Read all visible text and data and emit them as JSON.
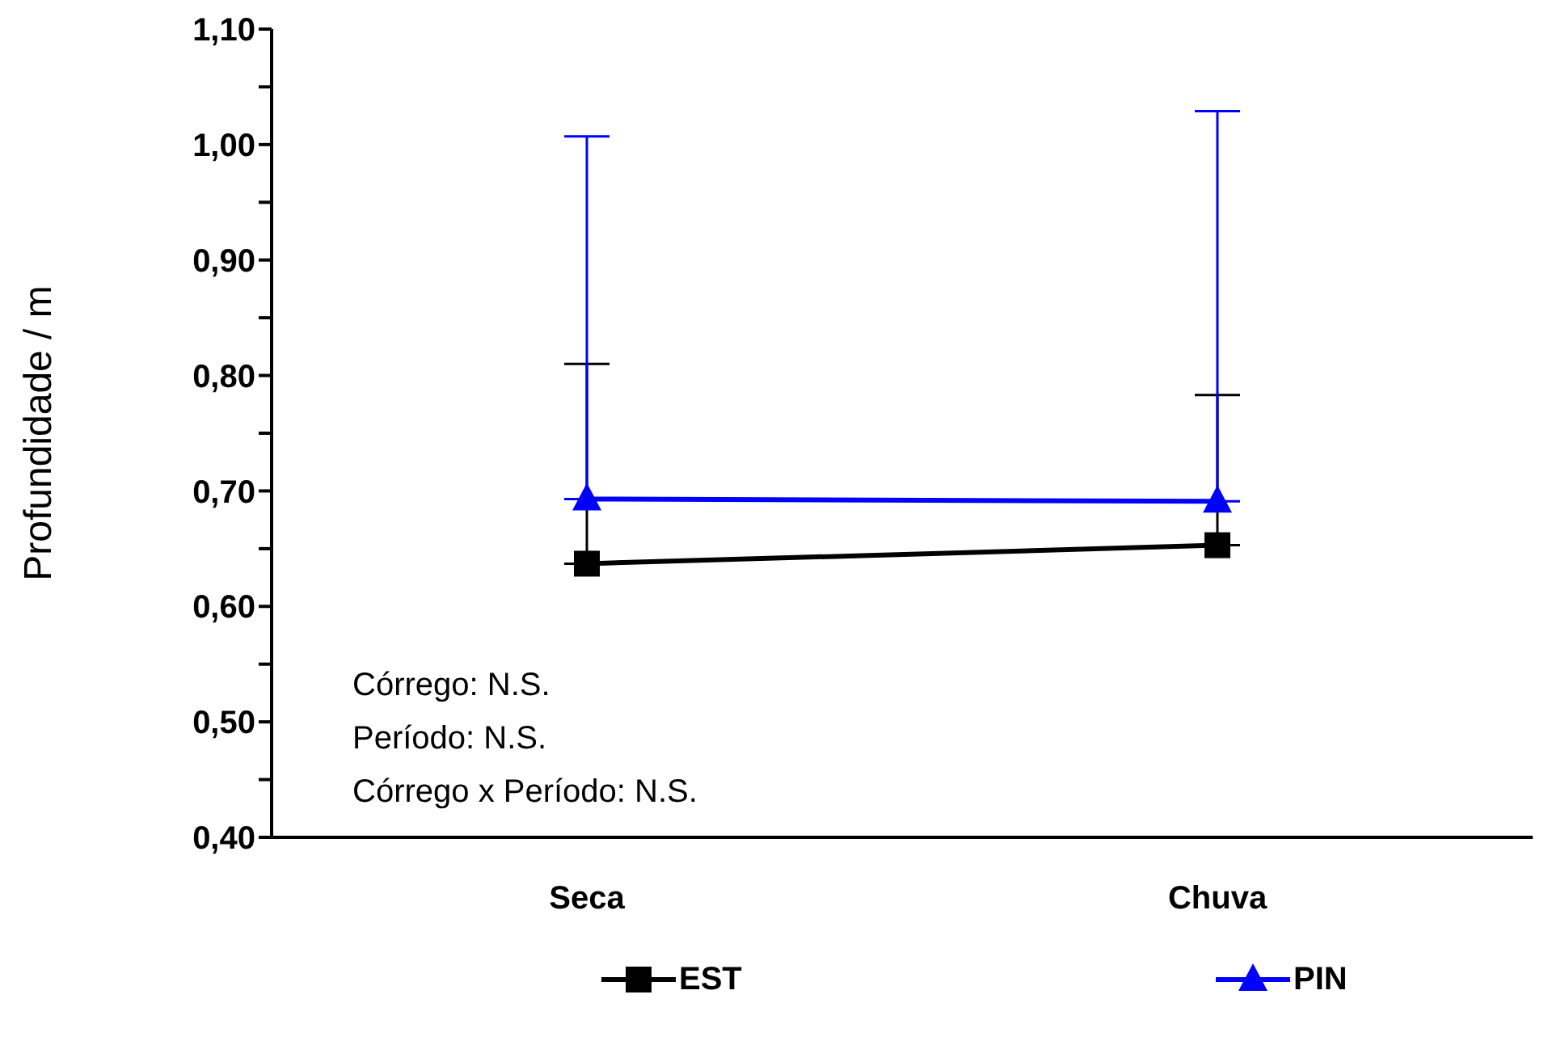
{
  "chart_data": {
    "type": "line",
    "ylabel": "Profundidade / m",
    "categories": [
      "Seca",
      "Chuva"
    ],
    "series": [
      {
        "name": "EST",
        "color": "#000000",
        "marker": "square",
        "values": [
          0.637,
          0.653
        ],
        "errors": [
          [
            0.637,
            0.81
          ],
          [
            0.653,
            0.783
          ]
        ]
      },
      {
        "name": "PIN",
        "color": "#0000ff",
        "marker": "triangle",
        "values": [
          0.693,
          0.691
        ],
        "errors": [
          [
            0.693,
            1.007
          ],
          [
            0.691,
            1.029
          ]
        ]
      }
    ],
    "ylim": [
      0.4,
      1.1
    ],
    "yticks": [
      {
        "value": 0.4,
        "label": "0,40"
      },
      {
        "value": 0.45,
        "label": null
      },
      {
        "value": 0.5,
        "label": "0,50"
      },
      {
        "value": 0.55,
        "label": null
      },
      {
        "value": 0.6,
        "label": "0,60"
      },
      {
        "value": 0.65,
        "label": null
      },
      {
        "value": 0.7,
        "label": "0,70"
      },
      {
        "value": 0.75,
        "label": null
      },
      {
        "value": 0.8,
        "label": "0,80"
      },
      {
        "value": 0.85,
        "label": null
      },
      {
        "value": 0.9,
        "label": "0,90"
      },
      {
        "value": 0.95,
        "label": null
      },
      {
        "value": 1.0,
        "label": "1,00"
      },
      {
        "value": 1.05,
        "label": null
      },
      {
        "value": 1.1,
        "label": "1,10"
      }
    ],
    "annotations": [
      "Córrego: N.S.",
      "Período: N.S.",
      "Córrego x Período: N.S."
    ],
    "grid": false,
    "legend": "bottom"
  }
}
